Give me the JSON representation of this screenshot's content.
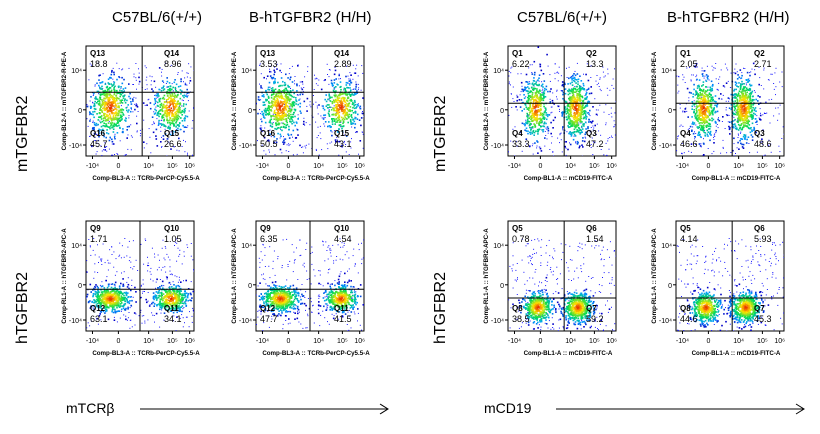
{
  "columns": {
    "c1": "C57BL/6(+/+)",
    "c2": "B-hTGFBR2 (H/H)",
    "c3": "C57BL/6(+/+)",
    "c4": "B-hTGFBR2 (H/H)"
  },
  "rows": {
    "top": "mTGFBR2",
    "bottom": "hTGFBR2"
  },
  "bottom_labels": {
    "left": "mTCRβ",
    "right": "mCD19"
  },
  "chart_data": [
    {
      "type": "scatter",
      "id": "tcr_m_wt",
      "xlabel": "Comp-BL3-A :: TCRb-PerCP-Cy5.5-A",
      "ylabel": "Comp-BL2-A :: mTGFBR2-R-PE-A",
      "xticks": [
        "-10⁴",
        "0",
        "10⁴",
        "10⁵",
        "10⁶"
      ],
      "yticks": [
        "10⁴",
        "0",
        "-10⁴"
      ],
      "quadrants": [
        {
          "name": "Q13",
          "value": "18.8",
          "pos": "top-left"
        },
        {
          "name": "Q14",
          "value": "8.96",
          "pos": "top-right"
        },
        {
          "name": "Q16",
          "value": "45.7",
          "pos": "bottom-left"
        },
        {
          "name": "Q15",
          "value": "26.6",
          "pos": "bottom-right"
        }
      ]
    },
    {
      "type": "scatter",
      "id": "tcr_m_hh",
      "xlabel": "Comp-BL3-A :: TCRb-PerCP-Cy5.5-A",
      "ylabel": "Comp-BL2-A :: mTGFBR2-R-PE-A",
      "xticks": [
        "-10⁴",
        "0",
        "10⁴",
        "10⁵",
        "10⁶"
      ],
      "yticks": [
        "10⁴",
        "0",
        "-10⁴"
      ],
      "quadrants": [
        {
          "name": "Q13",
          "value": "3.53",
          "pos": "top-left"
        },
        {
          "name": "Q14",
          "value": "2.89",
          "pos": "top-right"
        },
        {
          "name": "Q16",
          "value": "50.5",
          "pos": "bottom-left"
        },
        {
          "name": "Q15",
          "value": "43.1",
          "pos": "bottom-right"
        }
      ]
    },
    {
      "type": "scatter",
      "id": "cd19_m_wt",
      "xlabel": "Comp-BL1-A :: mCD19-FITC-A",
      "ylabel": "Comp-BL2-A :: mTGFBR2-R-PE-A",
      "xticks": [
        "-10⁴",
        "0",
        "10⁴",
        "10⁵",
        "10⁶"
      ],
      "yticks": [
        "10⁴",
        "0",
        "-10⁴"
      ],
      "quadrants": [
        {
          "name": "Q1",
          "value": "6.22",
          "pos": "top-left"
        },
        {
          "name": "Q2",
          "value": "13.3",
          "pos": "top-right"
        },
        {
          "name": "Q4",
          "value": "33.3",
          "pos": "bottom-left"
        },
        {
          "name": "Q3",
          "value": "47.2",
          "pos": "bottom-right"
        }
      ]
    },
    {
      "type": "scatter",
      "id": "cd19_m_hh",
      "xlabel": "Comp-BL1-A :: mCD19-FITC-A",
      "ylabel": "Comp-BL2-A :: mTGFBR2-R-PE-A",
      "xticks": [
        "-10⁴",
        "0",
        "10⁴",
        "10⁵",
        "10⁶"
      ],
      "yticks": [
        "10⁴",
        "0",
        "-10⁴"
      ],
      "quadrants": [
        {
          "name": "Q1",
          "value": "2.05",
          "pos": "top-left"
        },
        {
          "name": "Q2",
          "value": "2.71",
          "pos": "top-right"
        },
        {
          "name": "Q4",
          "value": "46.6",
          "pos": "bottom-left"
        },
        {
          "name": "Q3",
          "value": "48.6",
          "pos": "bottom-right"
        }
      ]
    },
    {
      "type": "scatter",
      "id": "tcr_h_wt",
      "xlabel": "Comp-BL3-A :: TCRb-PerCP-Cy5.5-A",
      "ylabel": "Comp-RL1-A :: hTGFBR2-APC-A",
      "xticks": [
        "-10⁴",
        "0",
        "10⁴",
        "10⁵",
        "10⁶"
      ],
      "yticks": [
        "10⁴",
        "0",
        "-10⁴"
      ],
      "quadrants": [
        {
          "name": "Q9",
          "value": "1.71",
          "pos": "top-left"
        },
        {
          "name": "Q10",
          "value": "1.05",
          "pos": "top-right"
        },
        {
          "name": "Q12",
          "value": "63.1",
          "pos": "bottom-left"
        },
        {
          "name": "Q11",
          "value": "34.1",
          "pos": "bottom-right"
        }
      ]
    },
    {
      "type": "scatter",
      "id": "tcr_h_hh",
      "xlabel": "Comp-BL3-A :: TCRb-PerCP-Cy5.5-A",
      "ylabel": "Comp-RL1-A :: hTGFBR2-APC-A",
      "xticks": [
        "-10⁴",
        "0",
        "10⁴",
        "10⁵",
        "10⁶"
      ],
      "yticks": [
        "10⁴",
        "0",
        "-10⁴"
      ],
      "quadrants": [
        {
          "name": "Q9",
          "value": "6.35",
          "pos": "top-left"
        },
        {
          "name": "Q10",
          "value": "4.54",
          "pos": "top-right"
        },
        {
          "name": "Q12",
          "value": "47.7",
          "pos": "bottom-left"
        },
        {
          "name": "Q11",
          "value": "41.5",
          "pos": "bottom-right"
        }
      ]
    },
    {
      "type": "scatter",
      "id": "cd19_h_wt",
      "xlabel": "Comp-BL1-A :: mCD19-FITC-A",
      "ylabel": "Comp-RL1-A :: hTGFBR2-APC-A",
      "xticks": [
        "-10⁴",
        "0",
        "10⁴",
        "10⁵",
        "10⁶"
      ],
      "yticks": [
        "10⁴",
        "0",
        "-10⁴"
      ],
      "quadrants": [
        {
          "name": "Q5",
          "value": "0.78",
          "pos": "top-left"
        },
        {
          "name": "Q6",
          "value": "1.54",
          "pos": "top-right"
        },
        {
          "name": "Q8",
          "value": "38.5",
          "pos": "bottom-left"
        },
        {
          "name": "Q7",
          "value": "59.2",
          "pos": "bottom-right"
        }
      ]
    },
    {
      "type": "scatter",
      "id": "cd19_h_hh",
      "xlabel": "Comp-BL1-A :: mCD19-FITC-A",
      "ylabel": "Comp-RL1-A :: hTGFBR2-APC-A",
      "xticks": [
        "-10⁴",
        "0",
        "10⁴",
        "10⁵",
        "10⁶"
      ],
      "yticks": [
        "10⁴",
        "0",
        "-10⁴"
      ],
      "quadrants": [
        {
          "name": "Q5",
          "value": "4.14",
          "pos": "top-left"
        },
        {
          "name": "Q6",
          "value": "5.93",
          "pos": "top-right"
        },
        {
          "name": "Q8",
          "value": "44.6",
          "pos": "bottom-left"
        },
        {
          "name": "Q7",
          "value": "45.3",
          "pos": "bottom-right"
        }
      ]
    }
  ]
}
